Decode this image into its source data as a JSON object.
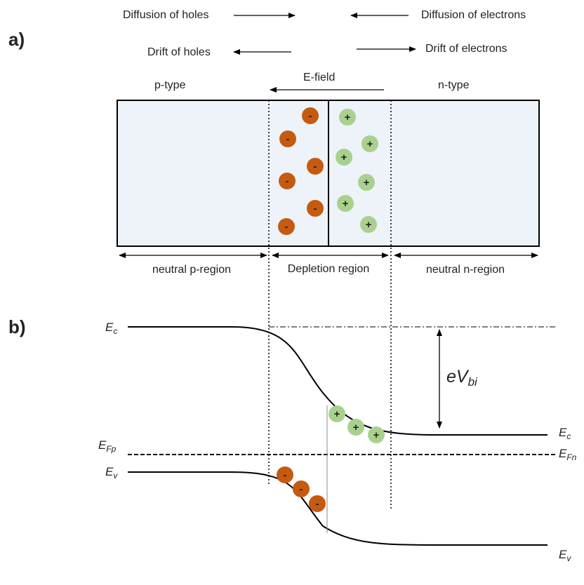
{
  "panel_labels": {
    "a": "a)",
    "b": "b)"
  },
  "carrier_flows": {
    "diffusion_holes": "Diffusion of holes",
    "diffusion_electrons": "Diffusion of electrons",
    "drift_holes": "Drift of holes",
    "drift_electrons": "Drift of electrons"
  },
  "junction": {
    "p_side": "p-type",
    "field": "E-field",
    "n_side": "n-type"
  },
  "ions": {
    "negative": "-",
    "positive": "+"
  },
  "regions": {
    "neutral_p": "neutral p-region",
    "depletion": "Depletion region",
    "neutral_n": "neutral n-region"
  },
  "band_labels": {
    "ec_left": {
      "symbol": "E",
      "subscript": "c"
    },
    "efp": {
      "symbol": "E",
      "subscript": "Fp"
    },
    "ev_left": {
      "symbol": "E",
      "subscript": "v"
    },
    "ec_right": {
      "symbol": "E",
      "subscript": "c"
    },
    "efn": {
      "symbol": "E",
      "subscript": "Fn"
    },
    "ev_right": {
      "symbol": "E",
      "subscript": "v"
    },
    "built_in": {
      "symbol": "eV",
      "subscript": "bi"
    }
  }
}
